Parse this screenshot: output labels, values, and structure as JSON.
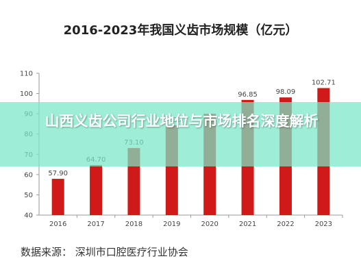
{
  "chart_data": {
    "type": "bar",
    "title": "2016-2023年我国义齿市场规模（亿元）",
    "categories": [
      "2016",
      "2017",
      "2018",
      "2019",
      "2020",
      "2021",
      "2022",
      "2023"
    ],
    "values": [
      57.9,
      64.7,
      73.1,
      84.3,
      90.0,
      96.85,
      98.09,
      102.71
    ],
    "data_labels": [
      "57.90",
      "64.70",
      "73.10",
      "84.30",
      "",
      "96.85",
      "98.09",
      "102.71"
    ],
    "ylim": [
      40,
      110
    ],
    "yticks": [
      40,
      50,
      60,
      70,
      80,
      90,
      100,
      110
    ],
    "grid": false,
    "bar_color": "#d01a1a",
    "xlabel": "",
    "ylabel": ""
  },
  "source_text": "数据来源：  深圳市口腔医疗行业协会",
  "overlay": {
    "text": "山西义齿公司行业地位与市场排名深度解析",
    "background": "#78e8c8"
  }
}
